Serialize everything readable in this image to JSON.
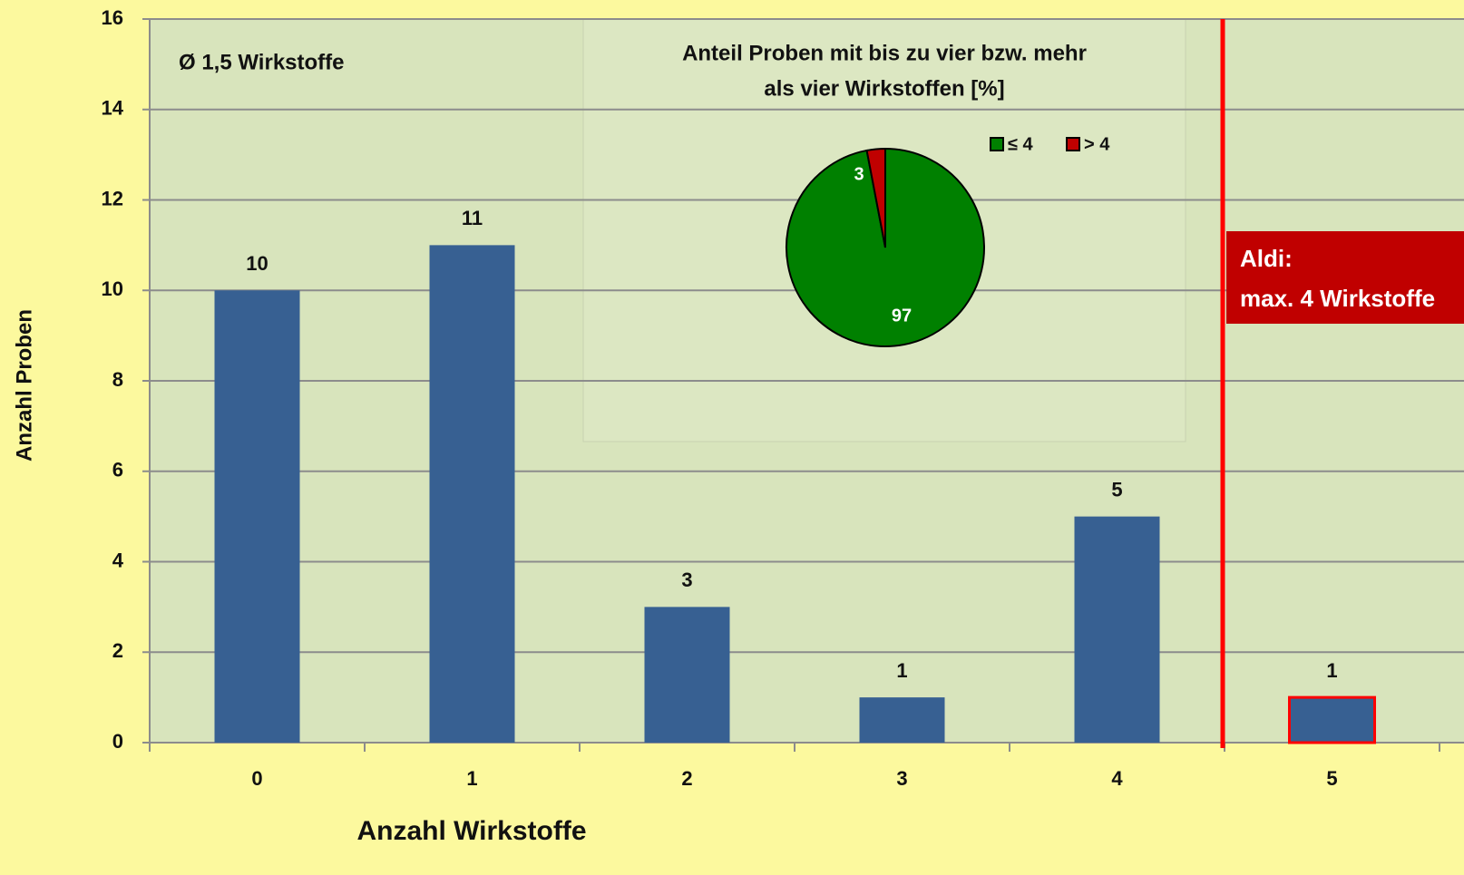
{
  "chart_data": [
    {
      "type": "bar",
      "xlabel": "Anzahl Wirkstoffe",
      "ylabel": "Anzahl Proben",
      "categories": [
        "0",
        "1",
        "2",
        "3",
        "4",
        "5"
      ],
      "values": [
        10,
        11,
        3,
        1,
        5,
        1
      ],
      "color": "#376092",
      "edgecolors": [
        null,
        null,
        null,
        null,
        null,
        "#ff0000"
      ],
      "ylim": [
        0,
        16
      ],
      "yticks": [
        0,
        2,
        4,
        6,
        8,
        10,
        12,
        14,
        16
      ],
      "grid": true,
      "annotations": [
        "Ø  1,5 Wirkstoffe",
        "Aldi:",
        "max. 4 Wirkstoffe"
      ]
    },
    {
      "type": "pie",
      "title": [
        "Anteil Proben mit bis zu vier bzw. mehr",
        "als vier Wirkstoffen [%]"
      ],
      "categories": [
        "≤ 4",
        "> 4"
      ],
      "values": [
        97,
        3
      ],
      "colors": [
        "#008000",
        "#c00000"
      ],
      "legend": "top-right"
    }
  ]
}
